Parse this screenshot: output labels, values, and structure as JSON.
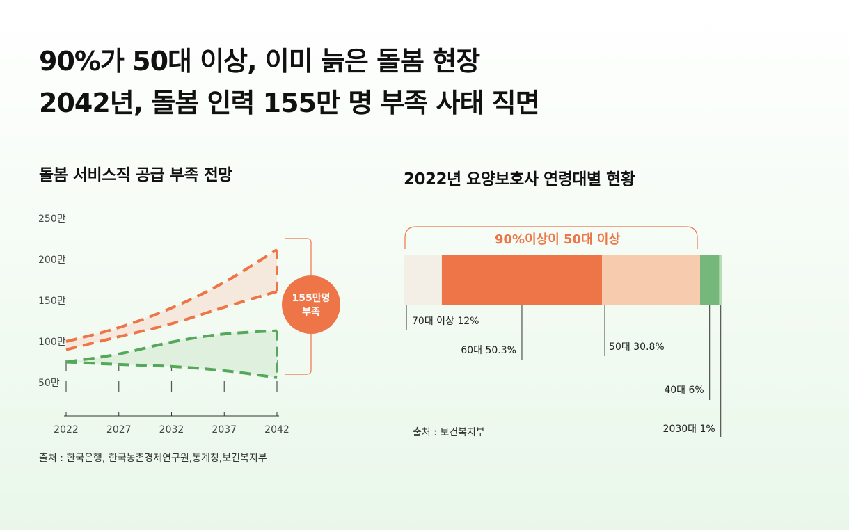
{
  "headline": {
    "line1": "90%가 50대 이상, 이미 늙은 돌봄 현장",
    "line2": "2042년, 돌봄 인력 155만 명 부족 사태 직면"
  },
  "colors": {
    "orange": "#ee7548",
    "green": "#55a85a",
    "light_orange": "#f7cbad",
    "cream": "#f3efe6",
    "dark_green": "#76b77b",
    "light_green": "#b7dcb6"
  },
  "chart_data": [
    {
      "type": "area",
      "title": "돌봄 서비스직 공급 부족 전망",
      "x": [
        2022,
        2027,
        2032,
        2037,
        2042
      ],
      "x_tick_labels": [
        "2022",
        "2027",
        "2032",
        "2037",
        "2042"
      ],
      "y_tick_labels": [
        "250만",
        "200만",
        "150만",
        "100만",
        "50만"
      ],
      "y_ticks": [
        250,
        200,
        150,
        100,
        50
      ],
      "ylim": [
        0,
        250
      ],
      "series": [
        {
          "values": [
            100,
            116,
            140,
            171,
            212
          ],
          "color": "#ee7548",
          "style": "dashed"
        },
        {
          "values": [
            90,
            106,
            121,
            142,
            161
          ],
          "color": "#ee7548",
          "style": "dashed"
        },
        {
          "values": [
            75,
            84,
            100,
            110,
            113
          ],
          "color": "#55a85a",
          "style": "dashed"
        },
        {
          "values": [
            75,
            72,
            70,
            65,
            56
          ],
          "color": "#55a85a",
          "style": "dashed"
        }
      ],
      "annotation": {
        "line1": "155만명",
        "line2": "부족"
      },
      "source": "출처 : 한국은행, 한국농촌경제연구원,통계청,보건복지부"
    },
    {
      "type": "bar",
      "title": "2022년 요양보호사 연령대별 현황",
      "bracket_label": "90%이상이 50대 이상",
      "segments": [
        {
          "label": "70대 이상 12%",
          "value": 12,
          "color": "#f3efe6"
        },
        {
          "label": "60대 50.3%",
          "value": 50.3,
          "color": "#ee7548"
        },
        {
          "label": "50대 30.8%",
          "value": 30.8,
          "color": "#f7cbad"
        },
        {
          "label": "40대 6%",
          "value": 6,
          "color": "#76b77b"
        },
        {
          "label": "2030대 1%",
          "value": 1,
          "color": "#b7dcb6"
        }
      ],
      "source": "출처 : 보건복지부"
    }
  ]
}
